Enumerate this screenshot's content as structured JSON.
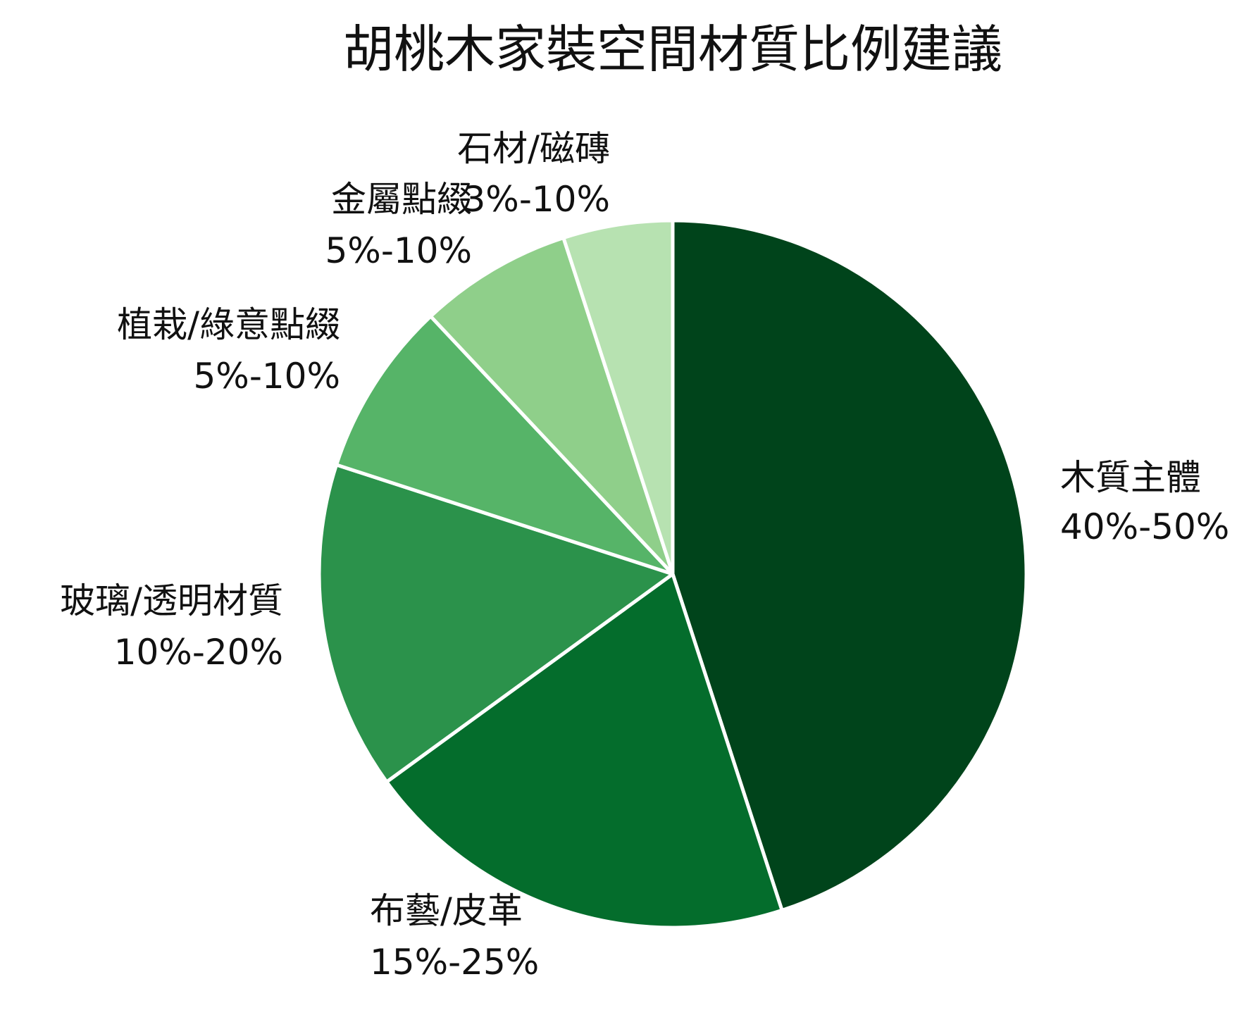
{
  "chart_data": {
    "type": "pie",
    "title": "胡桃木家裝空間材質比例建議",
    "slices": [
      {
        "name": "木質主體",
        "range": "40%-50%",
        "value": 45,
        "color": "#00441b"
      },
      {
        "name": "布藝/皮革",
        "range": "15%-25%",
        "value": 20,
        "color": "#046d2c"
      },
      {
        "name": "玻璃/透明材質",
        "range": "10%-20%",
        "value": 15,
        "color": "#2b924b"
      },
      {
        "name": "植栽/綠意點綴",
        "range": "5%-10%",
        "value": 8,
        "color": "#56b468"
      },
      {
        "name": "金屬點綴",
        "range": "5%-10%",
        "value": 7,
        "color": "#8fcf8a"
      },
      {
        "name": "石材/磁磚",
        "range": "3%-10%",
        "value": 5,
        "color": "#b7e2b1"
      }
    ],
    "start_angle": "12 o'clock",
    "direction": "clockwise"
  }
}
